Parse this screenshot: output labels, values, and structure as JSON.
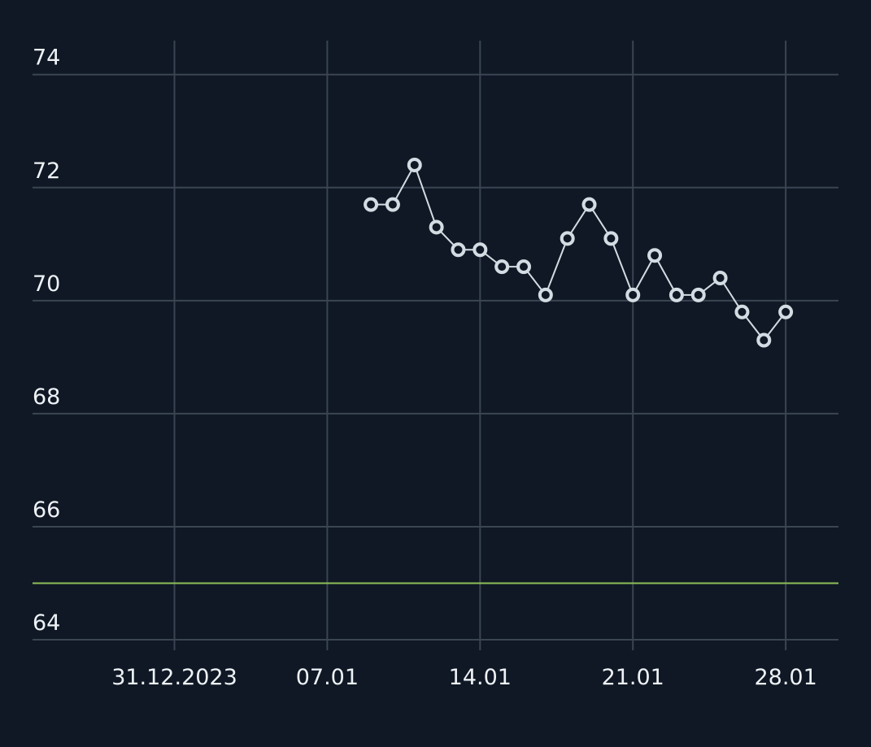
{
  "chart_data": {
    "type": "line",
    "x": [
      "2024-01-09",
      "2024-01-10",
      "2024-01-11",
      "2024-01-12",
      "2024-01-13",
      "2024-01-14",
      "2024-01-15",
      "2024-01-16",
      "2024-01-17",
      "2024-01-18",
      "2024-01-19",
      "2024-01-20",
      "2024-01-21",
      "2024-01-22",
      "2024-01-23",
      "2024-01-24",
      "2024-01-25",
      "2024-01-26",
      "2024-01-27",
      "2024-01-28"
    ],
    "values": [
      71.7,
      71.7,
      72.4,
      71.3,
      70.9,
      70.9,
      70.6,
      70.6,
      70.1,
      71.1,
      71.7,
      71.1,
      70.1,
      70.8,
      70.1,
      70.1,
      70.4,
      69.8,
      69.3,
      69.8
    ],
    "color": "#d3dbe3",
    "target_line": {
      "value": 65,
      "color": "#8fbf5a"
    },
    "xlim": [
      "2023-12-24T12:00",
      "2024-01-30T10:00"
    ],
    "xticks": [
      {
        "value": "2023-12-31",
        "label": "31.12.2023"
      },
      {
        "value": "2024-01-07",
        "label": "07.01"
      },
      {
        "value": "2024-01-14",
        "label": "14.01"
      },
      {
        "value": "2024-01-21",
        "label": "21.01"
      },
      {
        "value": "2024-01-28",
        "label": "28.01"
      }
    ],
    "ylim": [
      64,
      74.6
    ],
    "yticks": [
      64,
      66,
      68,
      70,
      72,
      74
    ],
    "grid": true
  }
}
